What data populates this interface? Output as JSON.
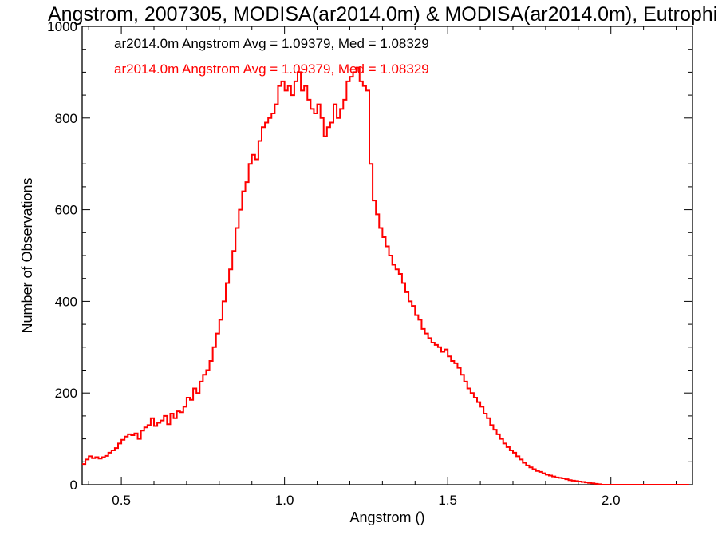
{
  "chart_data": {
    "type": "histogram",
    "title": "Angstrom, 2007305, MODISA(ar2014.0m) & MODISA(ar2014.0m), Eutrophi",
    "xlabel": "Angstrom ()",
    "ylabel": "Number of Observations",
    "xlim": [
      0.38,
      2.25
    ],
    "ylim": [
      0,
      1000
    ],
    "xticks": [
      0.5,
      1.0,
      1.5,
      2.0
    ],
    "xtick_labels": [
      "0.5",
      "1.0",
      "1.5",
      "2.0"
    ],
    "yticks": [
      0,
      200,
      400,
      600,
      800,
      1000
    ],
    "ytick_labels": [
      "0",
      "200",
      "400",
      "600",
      "800",
      "1000"
    ],
    "grid": false,
    "bin_width": 0.01,
    "x_start": 0.38,
    "legend": [
      {
        "text": "ar2014.0m Angstrom Avg = 1.09379, Med = 1.08329",
        "color": "#000000"
      },
      {
        "text": "ar2014.0m Angstrom Avg = 1.09379, Med = 1.08329",
        "color": "#ff0000"
      }
    ],
    "series": [
      {
        "color": "#ff0000",
        "values": [
          45,
          55,
          62,
          58,
          60,
          57,
          60,
          63,
          70,
          75,
          80,
          90,
          98,
          105,
          110,
          108,
          112,
          100,
          118,
          125,
          130,
          145,
          128,
          135,
          140,
          150,
          132,
          155,
          145,
          160,
          158,
          170,
          190,
          185,
          210,
          200,
          225,
          240,
          250,
          270,
          300,
          330,
          360,
          400,
          440,
          470,
          510,
          560,
          600,
          640,
          660,
          700,
          720,
          710,
          750,
          780,
          790,
          800,
          810,
          830,
          870,
          880,
          860,
          870,
          850,
          880,
          900,
          860,
          870,
          840,
          820,
          810,
          830,
          800,
          760,
          780,
          790,
          830,
          800,
          820,
          840,
          880,
          890,
          900,
          910,
          880,
          870,
          860,
          700,
          620,
          590,
          560,
          540,
          520,
          500,
          480,
          470,
          460,
          440,
          420,
          400,
          390,
          370,
          360,
          340,
          330,
          320,
          310,
          305,
          300,
          290,
          295,
          280,
          270,
          265,
          255,
          240,
          225,
          210,
          200,
          190,
          180,
          170,
          155,
          145,
          130,
          120,
          110,
          100,
          90,
          82,
          75,
          70,
          62,
          55,
          48,
          42,
          38,
          34,
          30,
          28,
          25,
          22,
          20,
          18,
          16,
          15,
          14,
          12,
          10,
          9,
          8,
          7,
          6,
          5,
          4,
          3,
          2,
          1,
          0,
          0,
          0,
          0,
          0,
          0,
          0,
          0,
          0,
          0,
          0,
          0,
          0,
          0,
          0,
          0,
          0,
          0,
          0,
          0,
          0,
          0,
          0,
          0,
          0,
          0,
          0
        ]
      }
    ]
  }
}
